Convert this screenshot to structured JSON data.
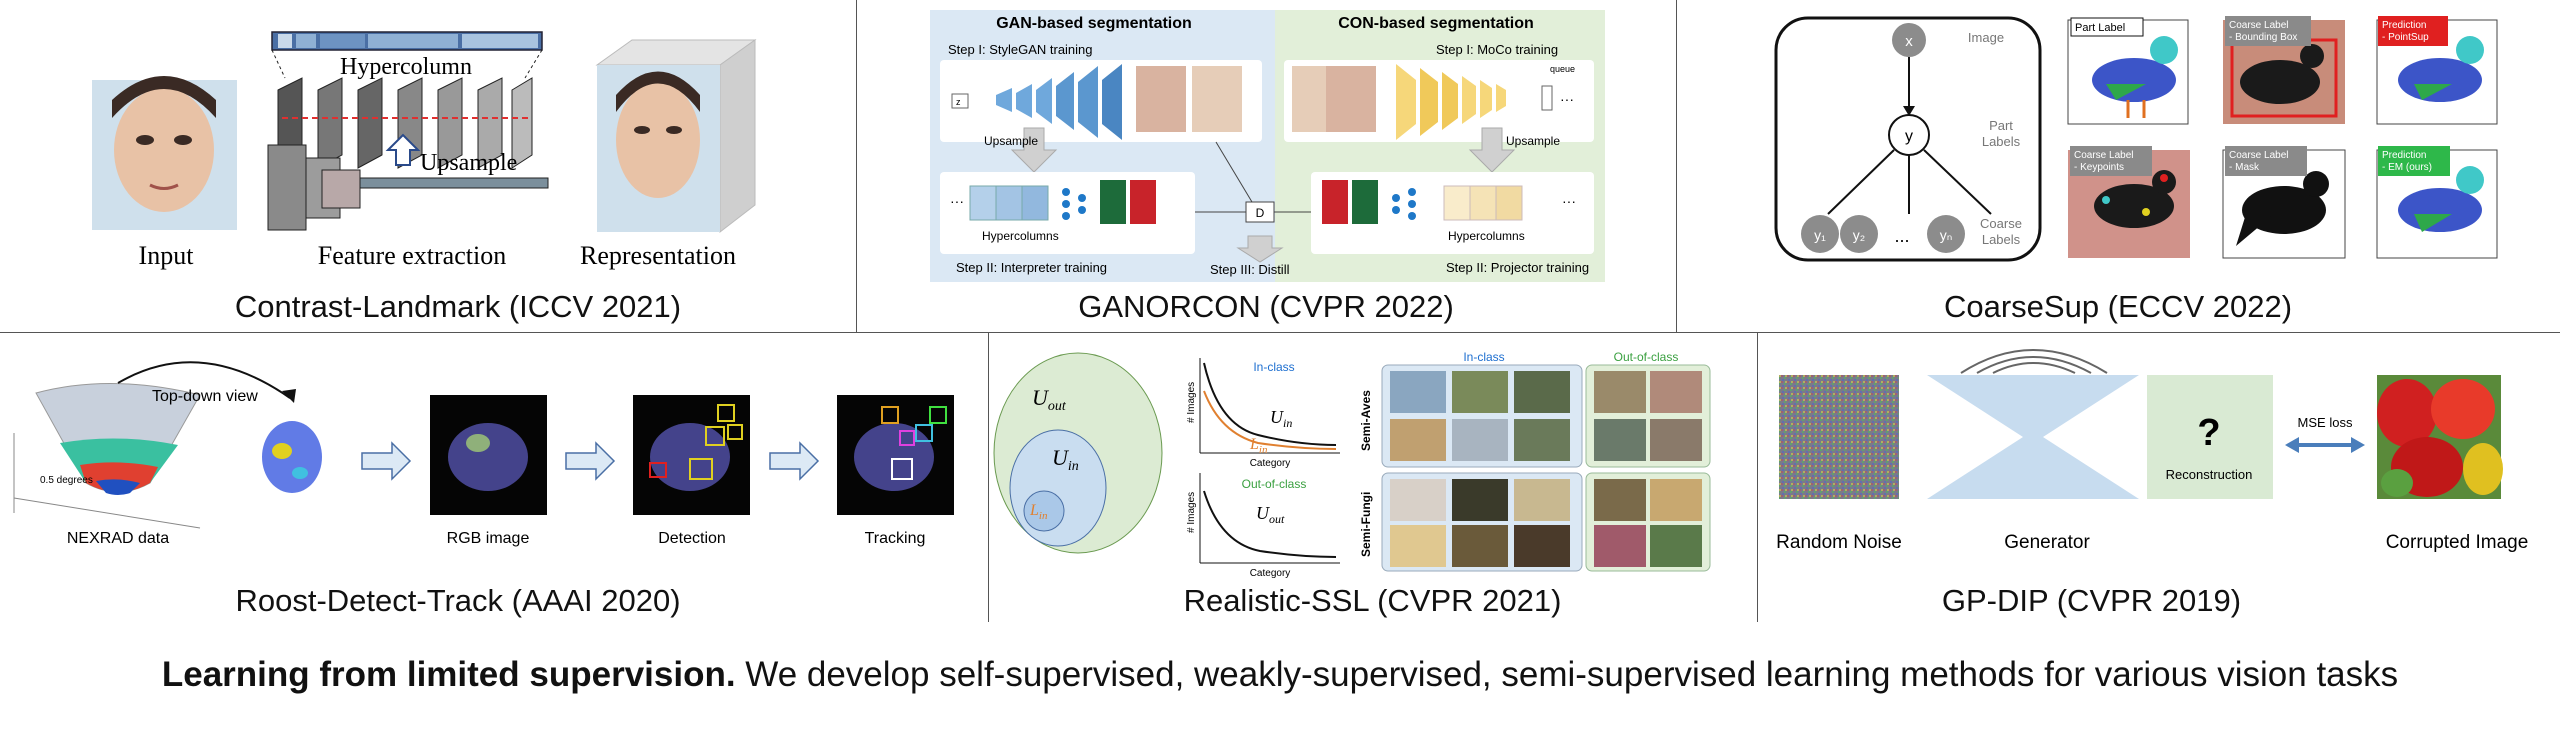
{
  "panels": {
    "contrast_landmark": {
      "caption": "Contrast-Landmark (ICCV 2021)",
      "labels": {
        "input": "Input",
        "hypercolumn": "Hypercolumn",
        "upsample": "Upsample",
        "feature_extraction": "Feature extraction",
        "representation": "Representation"
      }
    },
    "ganorcon": {
      "caption": "GANORCON (CVPR 2022)",
      "labels": {
        "gan_title": "GAN-based segmentation",
        "con_title": "CON-based segmentation",
        "step1_gan": "Step I: StyleGAN training",
        "step1_con": "Step I: MoCo training",
        "upsample_left": "Upsample",
        "upsample_right": "Upsample",
        "hypercolumns_left": "Hypercolumns",
        "hypercolumns_right": "Hypercolumns",
        "step2_left": "Step II: Interpreter training",
        "step2_right": "Step II: Projector training",
        "step3": "Step III: Distill",
        "d_node": "D",
        "z_node": "z",
        "queue": "queue"
      }
    },
    "coarsesup": {
      "caption": "CoarseSup (ECCV 2022)",
      "labels": {
        "node_x": "x",
        "node_y": "y",
        "node_y1": "y₁",
        "node_y2": "y₂",
        "node_yn": "yₙ",
        "dots": "...",
        "image": "Image",
        "part_labels": "Part\nLabels",
        "coarse_labels": "Coarse\nLabels",
        "tag_part_label": "Part Label",
        "tag_bbox": "Coarse Label\n- Bounding Box",
        "tag_pointsup": "Prediction\n- PointSup",
        "tag_keypoints": "Coarse Label\n- Keypoints",
        "tag_mask": "Coarse Label\n- Mask",
        "tag_em": "Prediction\n- EM (ours)"
      }
    },
    "roost": {
      "caption": "Roost-Detect-Track (AAAI 2020)",
      "labels": {
        "top_down": "Top-down view",
        "degrees": "0.5 degrees",
        "nexrad": "NEXRAD data",
        "rgb": "RGB image",
        "detection": "Detection",
        "tracking": "Tracking"
      }
    },
    "realistic_ssl": {
      "caption": "Realistic-SSL (CVPR 2021)",
      "labels": {
        "u_out": "U_out",
        "u_in": "U_in",
        "l_in": "L_in",
        "in_class_top": "In-class",
        "out_of_class_top": "Out-of-class",
        "y_axis": "# Images",
        "x_axis": "Category",
        "in_class_grid": "In-class",
        "out_of_class_grid": "Out-of-class",
        "semi_aves": "Semi-Aves",
        "semi_fungi": "Semi-Fungi"
      }
    },
    "gp_dip": {
      "caption": "GP-DIP (CVPR 2019)",
      "labels": {
        "random_noise": "Random Noise",
        "generator": "Generator",
        "reconstruction": "Reconstruction",
        "question": "?",
        "mse_loss": "MSE loss",
        "corrupted": "Corrupted Image"
      }
    }
  },
  "footer": {
    "bold": "Learning from limited supervision.",
    "rest": " We develop self-supervised, weakly-supervised, semi-supervised learning methods for various vision tasks"
  },
  "colors": {
    "gan_bg": "#dbe8f4",
    "con_bg": "#e2efd9",
    "blue_block": "#6fa8dc",
    "yellow_block": "#f6d77a",
    "generator_blue": "#c7dcef",
    "reconstruction_green": "#d9ead3",
    "venn_outer": "#dcebd3",
    "venn_inner": "#c9ddf0",
    "arrow_blue": "#4a7ebb"
  }
}
